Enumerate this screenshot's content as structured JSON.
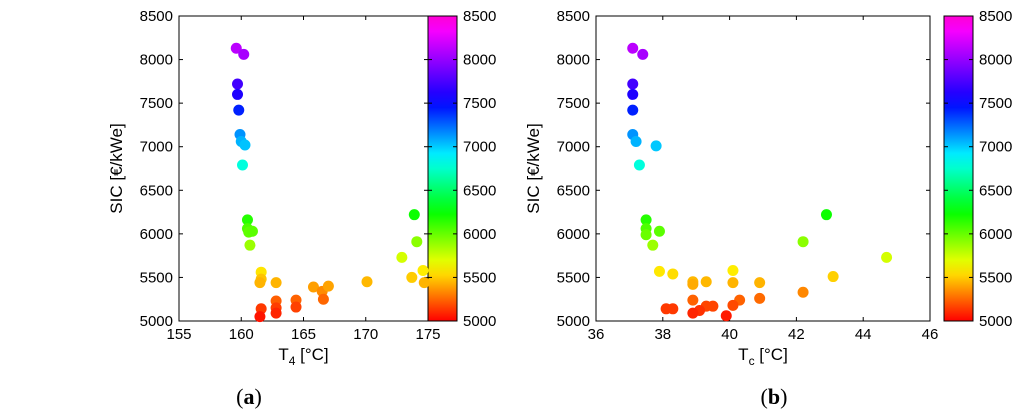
{
  "chart_data": [
    {
      "panel_label": "a",
      "type": "scatter",
      "title": "",
      "xlabel": "T",
      "xlabel_sub": "4",
      "xlabel_unit": " [°C]",
      "ylabel": "SIC [€/kWe]",
      "xlim": [
        155,
        175
      ],
      "ylim": [
        5000,
        8500
      ],
      "xticks": [
        "155",
        "160",
        "165",
        "170",
        "175"
      ],
      "yticks": [
        "5000",
        "5500",
        "6000",
        "6500",
        "7000",
        "7500",
        "8000",
        "8500"
      ],
      "colorbar": {
        "range": [
          5000,
          8500
        ],
        "ticks": [
          "5000",
          "5500",
          "6000",
          "6500",
          "7000",
          "7500",
          "8000",
          "8500"
        ]
      },
      "points": [
        {
          "x": 159.6,
          "y": 8130
        },
        {
          "x": 160.2,
          "y": 8060
        },
        {
          "x": 159.7,
          "y": 7720
        },
        {
          "x": 159.7,
          "y": 7600
        },
        {
          "x": 159.8,
          "y": 7420
        },
        {
          "x": 159.9,
          "y": 7140
        },
        {
          "x": 160.0,
          "y": 7060
        },
        {
          "x": 160.3,
          "y": 7020
        },
        {
          "x": 160.1,
          "y": 6790
        },
        {
          "x": 160.5,
          "y": 6160
        },
        {
          "x": 160.5,
          "y": 6060
        },
        {
          "x": 160.6,
          "y": 6020
        },
        {
          "x": 160.9,
          "y": 6030
        },
        {
          "x": 160.7,
          "y": 5870
        },
        {
          "x": 161.6,
          "y": 5560
        },
        {
          "x": 161.6,
          "y": 5480
        },
        {
          "x": 161.5,
          "y": 5440
        },
        {
          "x": 162.8,
          "y": 5440
        },
        {
          "x": 162.8,
          "y": 5230
        },
        {
          "x": 164.4,
          "y": 5240
        },
        {
          "x": 164.4,
          "y": 5160
        },
        {
          "x": 162.8,
          "y": 5150
        },
        {
          "x": 161.6,
          "y": 5140
        },
        {
          "x": 162.8,
          "y": 5090
        },
        {
          "x": 161.5,
          "y": 5050
        },
        {
          "x": 165.8,
          "y": 5390
        },
        {
          "x": 166.5,
          "y": 5340
        },
        {
          "x": 167.0,
          "y": 5400
        },
        {
          "x": 166.6,
          "y": 5250
        },
        {
          "x": 170.1,
          "y": 5450
        },
        {
          "x": 172.9,
          "y": 5730
        },
        {
          "x": 173.7,
          "y": 5500
        },
        {
          "x": 173.9,
          "y": 6220
        },
        {
          "x": 174.1,
          "y": 5910
        },
        {
          "x": 174.6,
          "y": 5580
        },
        {
          "x": 174.7,
          "y": 5440
        }
      ]
    },
    {
      "panel_label": "b",
      "type": "scatter",
      "title": "",
      "xlabel": "T",
      "xlabel_sub": "c",
      "xlabel_unit": " [°C]",
      "ylabel": "SIC [€/kWe]",
      "xlim": [
        36,
        46
      ],
      "ylim": [
        5000,
        8500
      ],
      "xticks": [
        "36",
        "38",
        "40",
        "42",
        "44",
        "46"
      ],
      "yticks": [
        "5000",
        "5500",
        "6000",
        "6500",
        "7000",
        "7500",
        "8000",
        "8500"
      ],
      "colorbar": {
        "range": [
          5000,
          8500
        ],
        "ticks": [
          "5000",
          "5500",
          "6000",
          "6500",
          "7000",
          "7500",
          "8000",
          "8500"
        ]
      },
      "points": [
        {
          "x": 37.1,
          "y": 8130
        },
        {
          "x": 37.4,
          "y": 8060
        },
        {
          "x": 37.1,
          "y": 7720
        },
        {
          "x": 37.1,
          "y": 7600
        },
        {
          "x": 37.1,
          "y": 7420
        },
        {
          "x": 37.1,
          "y": 7140
        },
        {
          "x": 37.2,
          "y": 7060
        },
        {
          "x": 37.8,
          "y": 7010
        },
        {
          "x": 37.3,
          "y": 6790
        },
        {
          "x": 37.5,
          "y": 6160
        },
        {
          "x": 37.5,
          "y": 6060
        },
        {
          "x": 37.5,
          "y": 5990
        },
        {
          "x": 37.9,
          "y": 6030
        },
        {
          "x": 37.7,
          "y": 5870
        },
        {
          "x": 37.9,
          "y": 5570
        },
        {
          "x": 38.3,
          "y": 5540
        },
        {
          "x": 38.9,
          "y": 5450
        },
        {
          "x": 39.3,
          "y": 5450
        },
        {
          "x": 38.9,
          "y": 5420
        },
        {
          "x": 40.1,
          "y": 5580
        },
        {
          "x": 40.1,
          "y": 5440
        },
        {
          "x": 40.9,
          "y": 5440
        },
        {
          "x": 38.9,
          "y": 5240
        },
        {
          "x": 39.3,
          "y": 5170
        },
        {
          "x": 39.5,
          "y": 5170
        },
        {
          "x": 38.1,
          "y": 5140
        },
        {
          "x": 38.3,
          "y": 5140
        },
        {
          "x": 39.1,
          "y": 5120
        },
        {
          "x": 38.9,
          "y": 5090
        },
        {
          "x": 39.9,
          "y": 5060
        },
        {
          "x": 40.3,
          "y": 5240
        },
        {
          "x": 40.1,
          "y": 5180
        },
        {
          "x": 40.9,
          "y": 5260
        },
        {
          "x": 42.2,
          "y": 5330
        },
        {
          "x": 42.2,
          "y": 5910
        },
        {
          "x": 42.9,
          "y": 6220
        },
        {
          "x": 43.1,
          "y": 5510
        },
        {
          "x": 44.7,
          "y": 5730
        }
      ]
    }
  ]
}
